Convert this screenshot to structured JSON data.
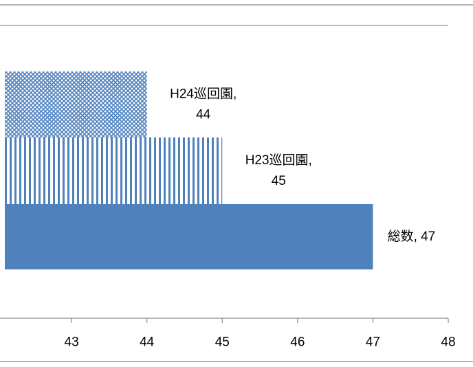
{
  "chart_data": {
    "type": "bar",
    "orientation": "horizontal",
    "categories": [
      "H24巡回園",
      "H23巡回園",
      "総数"
    ],
    "values": [
      44,
      45,
      47
    ],
    "data_labels": [
      [
        "H24巡回園,",
        "44"
      ],
      [
        "H23巡回園,",
        "45"
      ],
      [
        "総数, 47"
      ]
    ],
    "series": [
      {
        "name": "H24巡回園",
        "value": 44,
        "pattern": "crosshatch",
        "color": "#4f81bd"
      },
      {
        "name": "H23巡回園",
        "value": 45,
        "pattern": "vertical-stripes",
        "color": "#4f81bd"
      },
      {
        "name": "総数",
        "value": 47,
        "pattern": "solid",
        "color": "#4f81bd"
      }
    ],
    "xlim": [
      42.05,
      48
    ],
    "x_ticks": [
      43,
      44,
      45,
      46,
      47,
      48
    ],
    "x_tick_labels": [
      "43",
      "44",
      "45",
      "46",
      "47",
      "48"
    ],
    "grid": false,
    "legend": "none"
  }
}
